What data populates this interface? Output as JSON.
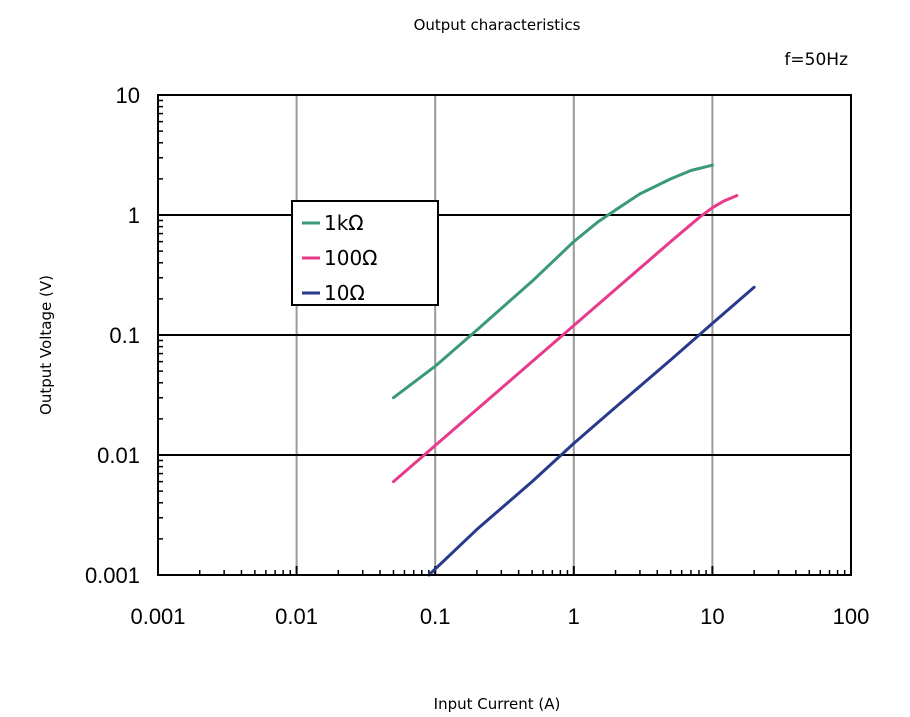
{
  "chart_data": {
    "type": "line",
    "title": "Output characteristics",
    "annotation": "f=50Hz",
    "xlabel": "Input Current (A)",
    "ylabel": "Output Voltage (V)",
    "x_scale": "log",
    "y_scale": "log",
    "xlim": [
      0.001,
      100
    ],
    "ylim": [
      0.001,
      10
    ],
    "x_ticks": [
      "0.001",
      "0.01",
      "0.1",
      "1",
      "10",
      "100"
    ],
    "y_ticks": [
      "10",
      "1",
      "0.1",
      "0.01",
      "0.001"
    ],
    "grid": {
      "vertical": true,
      "horizontal": true
    },
    "legend_position": "left",
    "series": [
      {
        "name": "1kΩ",
        "color": "#3a9a78",
        "x": [
          0.05,
          0.1,
          0.2,
          0.5,
          1,
          1.5,
          2,
          3,
          5,
          7,
          10
        ],
        "y": [
          0.03,
          0.055,
          0.11,
          0.28,
          0.6,
          0.88,
          1.1,
          1.5,
          2.0,
          2.35,
          2.6
        ]
      },
      {
        "name": "100Ω",
        "color": "#e8398a",
        "x": [
          0.05,
          0.1,
          0.2,
          0.5,
          1,
          2,
          5,
          8,
          10,
          12,
          15
        ],
        "y": [
          0.006,
          0.012,
          0.024,
          0.06,
          0.12,
          0.24,
          0.6,
          0.95,
          1.15,
          1.3,
          1.45
        ]
      },
      {
        "name": "10Ω",
        "color": "#283a8c",
        "x": [
          0.09,
          0.2,
          0.5,
          1,
          2,
          5,
          10,
          20
        ],
        "y": [
          0.001,
          0.0024,
          0.006,
          0.0125,
          0.025,
          0.062,
          0.125,
          0.25
        ]
      }
    ]
  }
}
